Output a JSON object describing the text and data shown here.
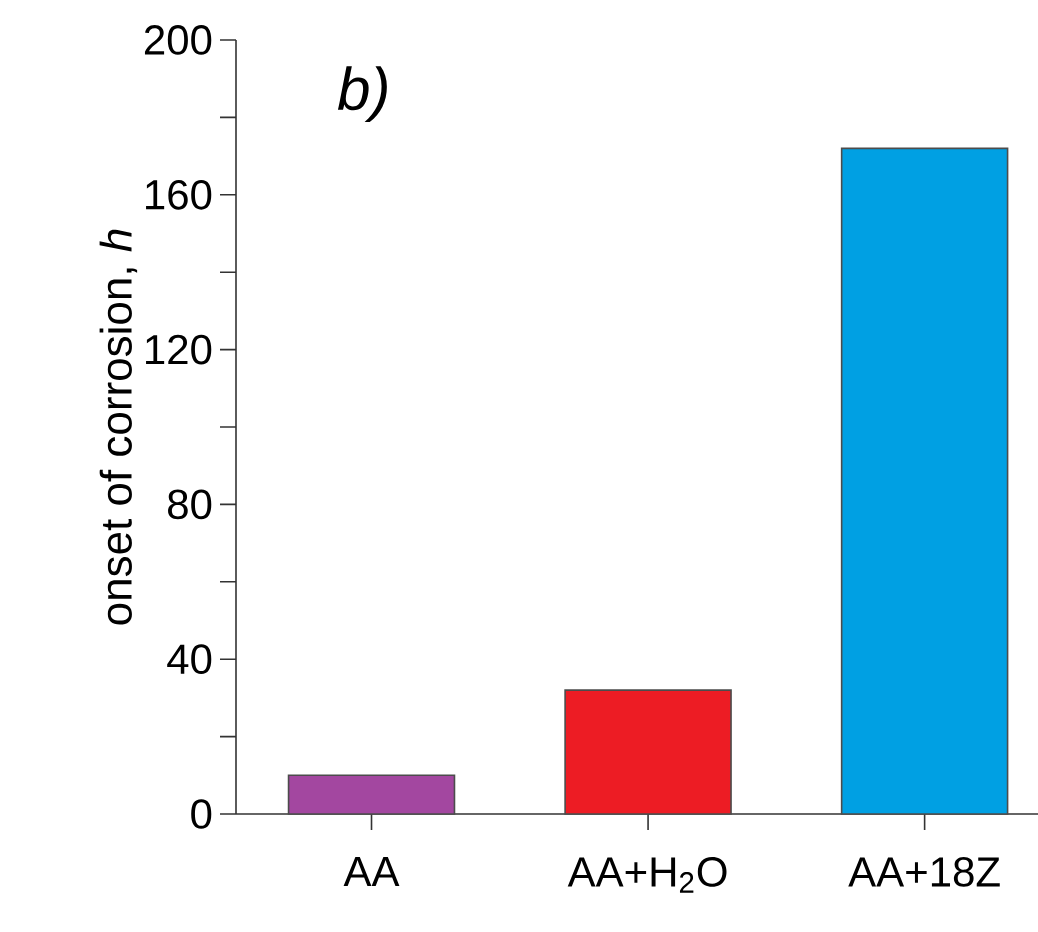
{
  "chart_data": {
    "type": "bar",
    "title": "*b)*",
    "ylabel": "onset of corrosion, *h*",
    "categories": [
      "AA",
      "AA+H$_{2}$O",
      "AA+18Z"
    ],
    "values": [
      10,
      32,
      172
    ],
    "colors": [
      "#a347a0",
      "#ed1c24",
      "#00a0e3"
    ],
    "ylim": [
      0,
      200
    ],
    "yticks": [
      0,
      {
        "value": 20,
        "label": null
      },
      40,
      {
        "value": 60,
        "label": null
      },
      80,
      {
        "value": 100,
        "label": null
      },
      120,
      {
        "value": 140,
        "label": null
      },
      160,
      {
        "value": 180,
        "label": null
      },
      200
    ]
  }
}
